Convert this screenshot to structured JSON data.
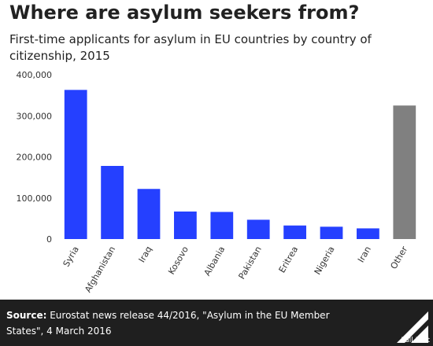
{
  "header": {
    "title": "Where are asylum seekers from?",
    "subtitle": "First-time applicants for asylum in EU countries by country of citizenship, 2015"
  },
  "chart_data": {
    "type": "bar",
    "categories": [
      "Syria",
      "Afghanistan",
      "Iraq",
      "Kosovo",
      "Albania",
      "Pakistan",
      "Eritrea",
      "Nigeria",
      "Iran",
      "Other"
    ],
    "values": [
      363000,
      178000,
      122000,
      67000,
      66000,
      47000,
      33000,
      30000,
      26000,
      325000
    ],
    "colors": [
      "#2540ff",
      "#2540ff",
      "#2540ff",
      "#2540ff",
      "#2540ff",
      "#2540ff",
      "#2540ff",
      "#2540ff",
      "#2540ff",
      "#808080"
    ],
    "yticks": [
      0,
      100000,
      200000,
      300000,
      400000
    ],
    "ytick_labels": [
      "0",
      "100,000",
      "200,000",
      "300,000",
      "400,000"
    ],
    "ylim": [
      0,
      400000
    ],
    "xlabel": "",
    "ylabel": "",
    "grid": false,
    "legend": "none"
  },
  "footer": {
    "source_label": "Source:",
    "source_text": " Eurostat news release 44/2016, \"Asylum in the EU Member States\", 4 March 2016",
    "brand": "Full Fact",
    "background": "#1f1f1f"
  }
}
